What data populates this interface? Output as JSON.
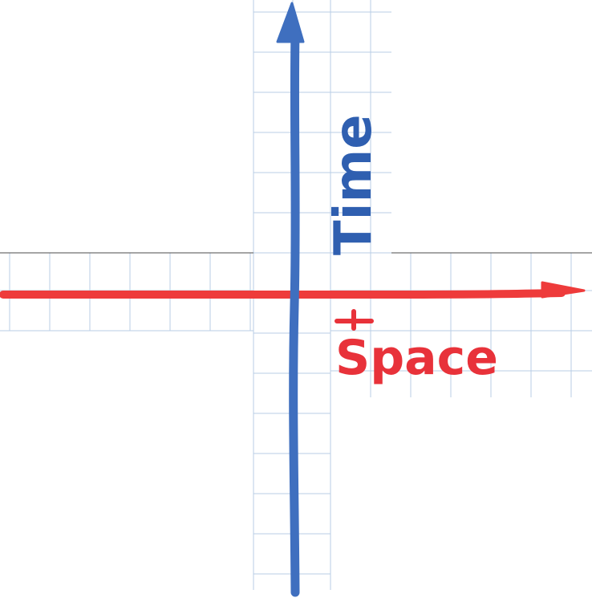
{
  "labels": {
    "time": "Time",
    "space": "Space"
  },
  "colors": {
    "time_axis": "#3f6fbf",
    "space_axis": "#ee3b3b",
    "time_text": "#2f5fb0",
    "space_text": "#e8323a",
    "grid": "#b9cde6",
    "paper": "#ffffff"
  }
}
